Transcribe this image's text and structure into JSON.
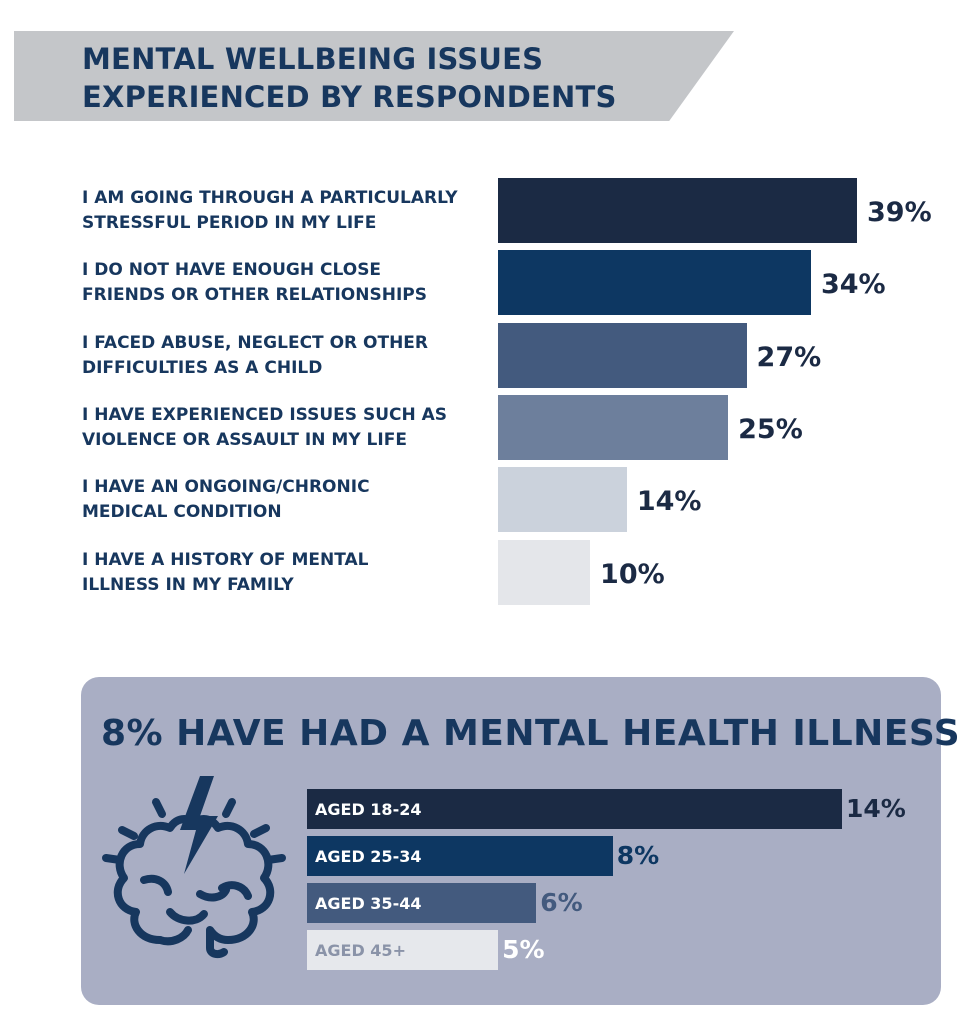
{
  "title": {
    "line1": "MENTAL WELLBEING ISSUES",
    "line2": "EXPERIENCED BY RESPONDENTS"
  },
  "chart_data": [
    {
      "type": "bar",
      "orientation": "horizontal",
      "title": "MENTAL WELLBEING ISSUES EXPERIENCED BY RESPONDENTS",
      "categories": [
        [
          "I AM GOING THROUGH A PARTICULARLY",
          "STRESSFUL PERIOD IN MY LIFE"
        ],
        [
          "I DO NOT HAVE ENOUGH CLOSE",
          "FRIENDS OR OTHER RELATIONSHIPS"
        ],
        [
          "I FACED ABUSE, NEGLECT OR OTHER",
          "DIFFICULTIES AS A CHILD"
        ],
        [
          "I HAVE EXPERIENCED ISSUES SUCH AS",
          "VIOLENCE OR ASSAULT IN MY LIFE"
        ],
        [
          "I HAVE AN ONGOING/CHRONIC",
          "MEDICAL CONDITION"
        ],
        [
          "I HAVE A HISTORY OF MENTAL",
          "ILLNESS IN MY FAMILY"
        ]
      ],
      "values": [
        39,
        34,
        27,
        25,
        14,
        10
      ],
      "value_labels": [
        "39%",
        "34%",
        "27%",
        "25%",
        "14%",
        "10%"
      ],
      "colors": [
        "#1b2a44",
        "#0d3762",
        "#435a7e",
        "#6d7f9c",
        "#cbd2dc",
        "#e4e6ea"
      ],
      "xlim": [
        0,
        39
      ]
    },
    {
      "type": "bar",
      "orientation": "horizontal",
      "title": "8% HAVE HAD A MENTAL HEALTH ILLNESS",
      "categories": [
        "AGED 18-24",
        "AGED 25-34",
        "AGED 35-44",
        "AGED 45+"
      ],
      "values": [
        14,
        8,
        6,
        5
      ],
      "value_labels": [
        "14%",
        "8%",
        "6%",
        "5%"
      ],
      "colors": [
        "#1b2a44",
        "#0d3762",
        "#435a7e",
        "#e6e8ec"
      ],
      "label_colors": [
        "#ffffff",
        "#ffffff",
        "#ffffff",
        "#8a93a8"
      ],
      "value_label_colors": [
        "#1b2a44",
        "#0d3762",
        "#435a7e",
        "#ffffff"
      ],
      "xlim": [
        0,
        14
      ]
    }
  ],
  "icons": {
    "brain": "brain-lightning-icon"
  }
}
